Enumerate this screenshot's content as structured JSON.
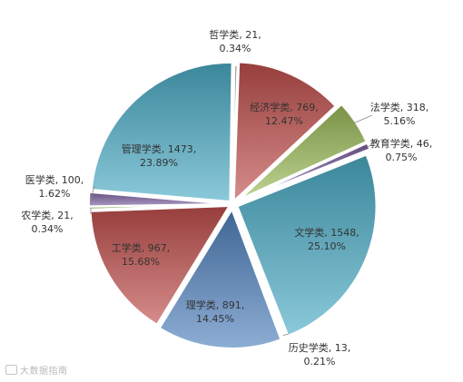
{
  "watermark": {
    "text": "大数据指南"
  },
  "chart_data": {
    "type": "pie",
    "title": "",
    "slices": [
      {
        "label": "哲学类",
        "value": 21,
        "percent": "0.34%",
        "display_value": "21",
        "color": "#bdbdbd"
      },
      {
        "label": "经济学类",
        "value": 769,
        "percent": "12.47%",
        "display_value": "769",
        "color": "#c0504d"
      },
      {
        "label": "法学类",
        "value": 318,
        "percent": "5.16%",
        "display_value": "318",
        "color": "#9bbb59"
      },
      {
        "label": "教育学类",
        "value": 46,
        "percent": "0.75%",
        "display_value": "46",
        "color": "#8064a2"
      },
      {
        "label": "文学类",
        "value": 1548,
        "percent": "25.10%",
        "display_value": "1548",
        "color": "#4bacc6"
      },
      {
        "label": "历史学类",
        "value": 13,
        "percent": "0.21%",
        "display_value": "13",
        "color": "#f79646"
      },
      {
        "label": "理学类",
        "value": 891,
        "percent": "14.45%",
        "display_value": "891",
        "color": "#4f81bd"
      },
      {
        "label": "工学类",
        "value": 967,
        "percent": "15.68%",
        "display_value": "967",
        "color": "#c0504d"
      },
      {
        "label": "农学类",
        "value": 21,
        "percent": "0.34%",
        "display_value": "21",
        "color": "#9bbb59"
      },
      {
        "label": "医学类",
        "value": 100,
        "percent": "1.62%",
        "display_value": "100",
        "color": "#8064a2"
      },
      {
        "label": "管理学类",
        "value": 1473,
        "percent": "23.89%",
        "display_value": "1473",
        "color": "#4bacc6"
      }
    ]
  }
}
